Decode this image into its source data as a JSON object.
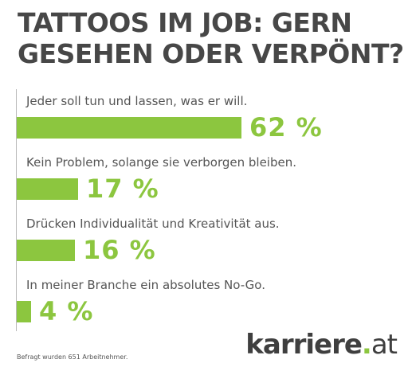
{
  "title_lines": [
    "TATTOOS IM JOB: GERN",
    "GESEHEN ODER VERPÖNT?"
  ],
  "chart_data": {
    "type": "bar",
    "orientation": "horizontal",
    "categories": [
      "Jeder soll tun und lassen, was er will.",
      "Kein Problem, solange sie verborgen bleiben.",
      "Drücken Individualität und Kreativität aus.",
      "In meiner Branche ein absolutes No-Go."
    ],
    "values": [
      62,
      17,
      16,
      4
    ],
    "value_labels": [
      "62 %",
      "17 %",
      "16 %",
      "4 %"
    ],
    "unit": "%",
    "xlim": [
      0,
      100
    ],
    "grid": false,
    "bar_color": "#8cc63f"
  },
  "footnote": "Befragt wurden 651 Arbeitnehmer.",
  "logo": {
    "main": "karriere",
    "dot": ".",
    "tld": "at"
  },
  "colors": {
    "accent": "#8cc63f",
    "text": "#474747"
  }
}
